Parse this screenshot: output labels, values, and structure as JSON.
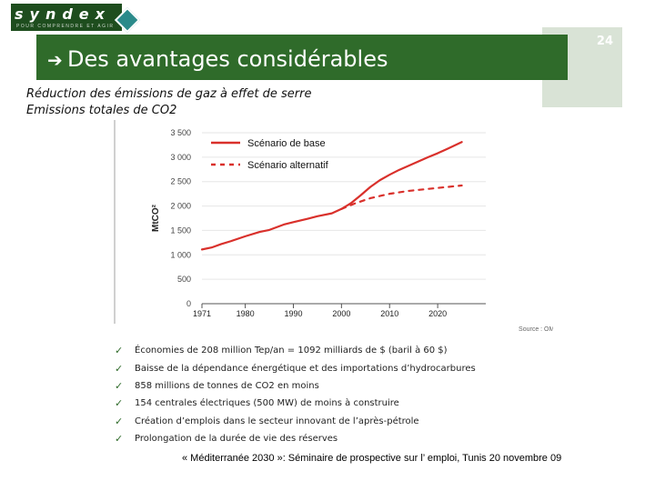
{
  "header": {
    "logo_text": "syndex",
    "logo_tagline": "POUR COMPRENDRE ET AGIR",
    "arrow": "è",
    "title": "Des avantages considérables",
    "page_number": "24"
  },
  "subtitles": {
    "line1": "Réduction des émissions de gaz à effet de serre",
    "line2": "Emissions totales de CO2"
  },
  "chart_data": {
    "type": "line",
    "ylabel": "MtCO²",
    "xlabel": "",
    "source": "Source : OME",
    "ylim": [
      0,
      3500
    ],
    "xlim": [
      1971,
      2030
    ],
    "y_ticks": [
      0,
      500,
      1000,
      1500,
      2000,
      2500,
      3000,
      3500
    ],
    "y_tick_labels": [
      "0",
      "500",
      "1 000",
      "1 500",
      "2 000",
      "2 500",
      "3 000",
      "3 500"
    ],
    "x_ticks": [
      1971,
      1980,
      1990,
      2000,
      2010,
      2020
    ],
    "x_tick_labels": [
      "1971",
      "1980",
      "1990",
      "2000",
      "2010",
      "2020"
    ],
    "legend_position": "top-left",
    "series": [
      {
        "name": "Scénario de base",
        "style": "solid",
        "color": "#d9302b",
        "x": [
          1971,
          1973,
          1975,
          1977,
          1980,
          1983,
          1985,
          1988,
          1990,
          1993,
          1995,
          1998,
          2000,
          2002,
          2004,
          2006,
          2008,
          2010,
          2012,
          2015,
          2018,
          2020,
          2022,
          2025
        ],
        "y": [
          1110,
          1150,
          1220,
          1280,
          1380,
          1470,
          1510,
          1620,
          1670,
          1740,
          1790,
          1850,
          1940,
          2060,
          2220,
          2390,
          2530,
          2640,
          2740,
          2870,
          3000,
          3080,
          3170,
          3310
        ]
      },
      {
        "name": "Scénario alternatif",
        "style": "dashed",
        "color": "#d9302b",
        "x": [
          2000,
          2003,
          2006,
          2010,
          2014,
          2018,
          2022,
          2025
        ],
        "y": [
          1940,
          2060,
          2160,
          2250,
          2310,
          2350,
          2390,
          2420
        ]
      }
    ]
  },
  "bullets": [
    "Économies de 208 million Tep/an = 1092 milliards de $ (baril à 60 $)",
    "Baisse de la dépendance énergétique et des importations d’hydrocarbures",
    "858 millions de tonnes de CO2 en moins",
    "154 centrales électriques (500 MW) de moins à construire",
    "Création d’emplois dans le secteur innovant de l’après-pétrole",
    "Prolongation de la durée de vie des réserves"
  ],
  "check_glyph": "✓",
  "footer": "« Méditerranée 2030 »: Séminaire de prospective sur l’ emploi, Tunis 20 novembre 09",
  "colors": {
    "title_bar": "#2f6b2a",
    "logo_bg": "#1e4d1e",
    "series": "#d9302b"
  }
}
